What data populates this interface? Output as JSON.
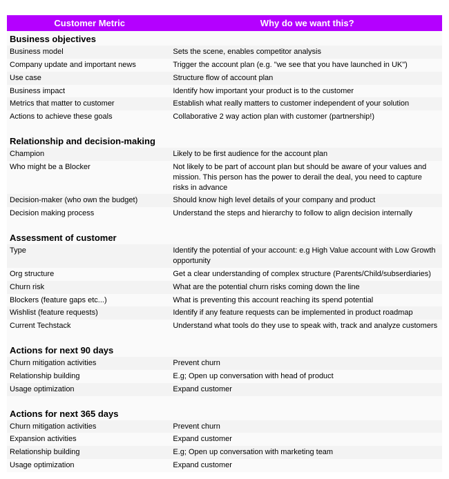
{
  "header": {
    "left": "Customer Metric",
    "right": "Why do we want this?"
  },
  "colors": {
    "header_bg": "#b400ff",
    "header_text": "#ffffff",
    "row_alt0": "#f3f3f3",
    "row_alt1": "#fafafa"
  },
  "sections": [
    {
      "title": "Business objectives",
      "rows": [
        {
          "metric": "Business model",
          "why": "Sets the scene, enables competitor analysis"
        },
        {
          "metric": "Company update and important news",
          "why": "Trigger the account plan (e.g. \"we see that you have launched in UK\")"
        },
        {
          "metric": "Use case",
          "why": "Structure flow of account plan"
        },
        {
          "metric": "Business impact",
          "why": "Identify how important your product is to the customer"
        },
        {
          "metric": "Metrics that matter to customer",
          "why": "Establish what really matters to customer independent of your solution"
        },
        {
          "metric": "Actions to achieve these goals",
          "why": "Collaborative 2 way action plan with customer (partnership!)"
        }
      ]
    },
    {
      "title": "Relationship and decision-making",
      "rows": [
        {
          "metric": "Champion",
          "why": "Likely to be first audience for the account plan"
        },
        {
          "metric": "Who might be a Blocker",
          "why": "Not likely to be part of account plan but should be aware of your values and mission. This person has the power to derail the deal, you need to capture risks in advance"
        },
        {
          "metric": "Decision-maker (who own the budget)",
          "why": "Should know high level details of your company and product"
        },
        {
          "metric": "Decision making process",
          "why": "Understand the steps and hierarchy to follow to align decision internally"
        }
      ]
    },
    {
      "title": "Assessment of customer",
      "rows": [
        {
          "metric": "Type",
          "why": "Identify the potential of your account: e.g High Value account with Low Growth opportunity"
        },
        {
          "metric": "Org structure",
          "why": "Get a clear understanding of complex structure (Parents/Child/subserdiaries)"
        },
        {
          "metric": "Churn risk",
          "why": "What are the potential churn risks coming down the line"
        },
        {
          "metric": "Blockers (feature gaps etc...)",
          "why": "What is preventing this account reaching its spend potential"
        },
        {
          "metric": "Wishlist (feature requests)",
          "why": "Identify if any feature requests can be implemented in product roadmap"
        },
        {
          "metric": "Current Techstack",
          "why": "Understand what tools do they use to speak with, track and analyze customers"
        }
      ]
    },
    {
      "title": "Actions for next 90 days",
      "rows": [
        {
          "metric": "Churn mitigation activities",
          "why": "Prevent churn"
        },
        {
          "metric": "Relationship building",
          "why": "E.g; Open up conversation with head of product"
        },
        {
          "metric": "Usage optimization",
          "why": "Expand customer"
        }
      ]
    },
    {
      "title": "Actions for next 365 days",
      "rows": [
        {
          "metric": "Churn mitigation activities",
          "why": "Prevent churn"
        },
        {
          "metric": "Expansion activities",
          "why": "Expand customer"
        },
        {
          "metric": "Relationship building",
          "why": "E.g; Open up conversation with marketing team"
        },
        {
          "metric": "Usage optimization",
          "why": "Expand customer"
        }
      ]
    }
  ]
}
